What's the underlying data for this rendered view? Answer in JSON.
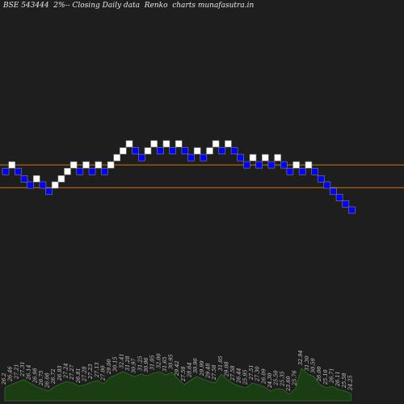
{
  "title": "BSE 543444  2%-- Closing Daily data  Renko  charts munafasutra.in",
  "colors": {
    "background": "#1e1e1e",
    "up_brick": "#ffffff",
    "down_brick": "#0000ff",
    "brick_border": "#888888",
    "resistance_line": "#c87a00",
    "support_line": "#c87a00",
    "volume_fill": "#1a3d13",
    "volume_edge": "#2f6e22",
    "label_text": "#d0d0d0"
  },
  "chart_data": {
    "type": "renko",
    "brick_size_note": "2%",
    "levels": {
      "resistance": 26.46,
      "support": 25.59
    },
    "bricks": [
      {
        "dir": "down",
        "level": 26.21
      },
      {
        "dir": "up",
        "level": 26.46
      },
      {
        "dir": "down",
        "level": 26.21
      },
      {
        "dir": "down",
        "level": 25.93
      },
      {
        "dir": "down",
        "level": 25.69
      },
      {
        "dir": "up",
        "level": 25.93
      },
      {
        "dir": "down",
        "level": 25.69
      },
      {
        "dir": "down",
        "level": 25.45
      },
      {
        "dir": "up",
        "level": 25.69
      },
      {
        "dir": "up",
        "level": 25.93
      },
      {
        "dir": "up",
        "level": 26.21
      },
      {
        "dir": "up",
        "level": 26.46
      },
      {
        "dir": "down",
        "level": 26.21
      },
      {
        "dir": "up",
        "level": 26.46
      },
      {
        "dir": "down",
        "level": 26.21
      },
      {
        "dir": "up",
        "level": 26.46
      },
      {
        "dir": "down",
        "level": 26.21
      },
      {
        "dir": "up",
        "level": 26.46
      },
      {
        "dir": "up",
        "level": 26.74
      },
      {
        "dir": "up",
        "level": 27.0
      },
      {
        "dir": "up",
        "level": 27.27
      },
      {
        "dir": "down",
        "level": 27.0
      },
      {
        "dir": "down",
        "level": 26.74
      },
      {
        "dir": "up",
        "level": 27.0
      },
      {
        "dir": "up",
        "level": 27.27
      },
      {
        "dir": "down",
        "level": 27.0
      },
      {
        "dir": "up",
        "level": 27.27
      },
      {
        "dir": "down",
        "level": 27.0
      },
      {
        "dir": "up",
        "level": 27.27
      },
      {
        "dir": "down",
        "level": 27.0
      },
      {
        "dir": "down",
        "level": 26.74
      },
      {
        "dir": "up",
        "level": 27.0
      },
      {
        "dir": "down",
        "level": 26.74
      },
      {
        "dir": "up",
        "level": 27.0
      },
      {
        "dir": "up",
        "level": 27.27
      },
      {
        "dir": "down",
        "level": 27.0
      },
      {
        "dir": "up",
        "level": 27.27
      },
      {
        "dir": "down",
        "level": 27.0
      },
      {
        "dir": "down",
        "level": 26.74
      },
      {
        "dir": "down",
        "level": 26.46
      },
      {
        "dir": "up",
        "level": 26.74
      },
      {
        "dir": "down",
        "level": 26.46
      },
      {
        "dir": "up",
        "level": 26.74
      },
      {
        "dir": "down",
        "level": 26.46
      },
      {
        "dir": "up",
        "level": 26.74
      },
      {
        "dir": "down",
        "level": 26.46
      },
      {
        "dir": "down",
        "level": 26.21
      },
      {
        "dir": "up",
        "level": 26.46
      },
      {
        "dir": "down",
        "level": 26.21
      },
      {
        "dir": "up",
        "level": 26.46
      },
      {
        "dir": "down",
        "level": 26.21
      },
      {
        "dir": "down",
        "level": 25.93
      },
      {
        "dir": "down",
        "level": 25.69
      },
      {
        "dir": "down",
        "level": 25.45
      },
      {
        "dir": "down",
        "level": 25.21
      },
      {
        "dir": "down",
        "level": 24.97
      },
      {
        "dir": "down",
        "level": 24.73
      }
    ],
    "volume_labels": [
      {
        "text": "26.2",
        "vol": 16
      },
      {
        "text": "26.46",
        "vol": 20
      },
      {
        "text": "27.21",
        "vol": 23
      },
      {
        "text": "27.31",
        "vol": 26
      },
      {
        "text": "26.14",
        "vol": 22
      },
      {
        "text": "26.98",
        "vol": 18
      },
      {
        "text": "26.75",
        "vol": 15
      },
      {
        "text": "26.08",
        "vol": 12
      },
      {
        "text": "26.72",
        "vol": 17
      },
      {
        "text": "26.93",
        "vol": 21
      },
      {
        "text": "27.24",
        "vol": 24
      },
      {
        "text": "27.27",
        "vol": 22
      },
      {
        "text": "26.81",
        "vol": 18
      },
      {
        "text": "27.28",
        "vol": 20
      },
      {
        "text": "27.23",
        "vol": 23
      },
      {
        "text": "27.13",
        "vol": 25
      },
      {
        "text": "27.00",
        "vol": 21
      },
      {
        "text": "29.00",
        "vol": 29
      },
      {
        "text": "30.15",
        "vol": 32
      },
      {
        "text": "32.41",
        "vol": 36
      },
      {
        "text": "31.28",
        "vol": 33
      },
      {
        "text": "30.97",
        "vol": 30
      },
      {
        "text": "31.25",
        "vol": 33
      },
      {
        "text": "30.96",
        "vol": 31
      },
      {
        "text": "31.05",
        "vol": 34
      },
      {
        "text": "32.00",
        "vol": 36
      },
      {
        "text": "31.65",
        "vol": 32
      },
      {
        "text": "30.95",
        "vol": 35
      },
      {
        "text": "29.42",
        "vol": 27
      },
      {
        "text": "27.58",
        "vol": 20
      },
      {
        "text": "28.64",
        "vol": 25
      },
      {
        "text": "30.90",
        "vol": 30
      },
      {
        "text": "29.99",
        "vol": 27
      },
      {
        "text": "29.48",
        "vol": 24
      },
      {
        "text": "27.58",
        "vol": 22
      },
      {
        "text": "31.05",
        "vol": 33
      },
      {
        "text": "29.08",
        "vol": 26
      },
      {
        "text": "27.58",
        "vol": 21
      },
      {
        "text": "26.44",
        "vol": 18
      },
      {
        "text": "25.95",
        "vol": 16
      },
      {
        "text": "27.51",
        "vol": 22
      },
      {
        "text": "27.30",
        "vol": 20
      },
      {
        "text": "26.09",
        "vol": 17
      },
      {
        "text": "24.30",
        "vol": 12
      },
      {
        "text": "25.50",
        "vol": 15
      },
      {
        "text": "25.35",
        "vol": 14
      },
      {
        "text": "23.60",
        "vol": 8
      },
      {
        "text": "25.76",
        "vol": 15
      },
      {
        "text": "32.94",
        "vol": 40
      },
      {
        "text": "31.30",
        "vol": 33
      },
      {
        "text": "30.59",
        "vol": 30
      },
      {
        "text": "26.00",
        "vol": 20
      },
      {
        "text": "25.10",
        "vol": 16
      },
      {
        "text": "26.71",
        "vol": 18
      },
      {
        "text": "26.11",
        "vol": 14
      },
      {
        "text": "25.58",
        "vol": 12
      },
      {
        "text": "24.25",
        "vol": 9
      }
    ]
  }
}
